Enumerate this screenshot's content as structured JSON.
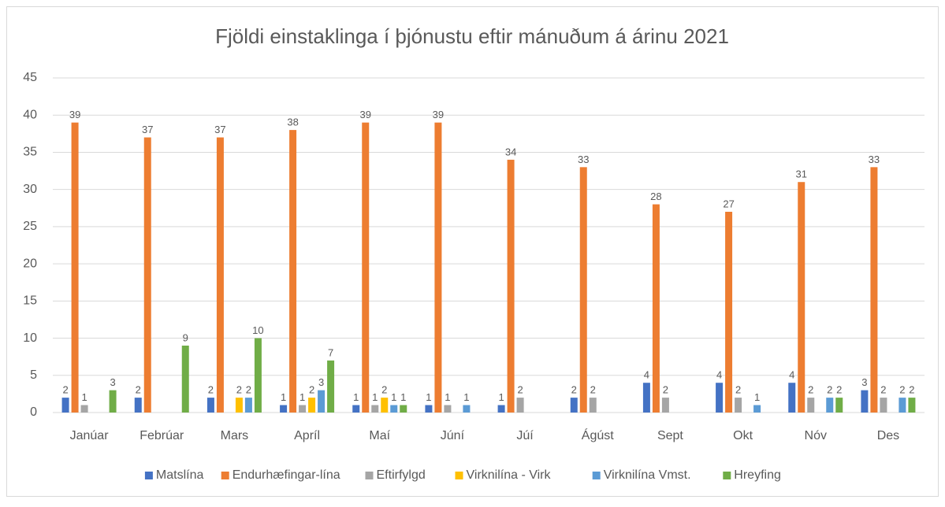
{
  "chart_data": {
    "type": "bar",
    "title": "Fjöldi einstaklinga í þjónustu eftir mánuðum á árinu 2021",
    "categories": [
      "Janúar",
      "Febrúar",
      "Mars",
      "Apríl",
      "Maí",
      "Júní",
      "Júí",
      "Ágúst",
      "Sept",
      "Okt",
      "Nóv",
      "Des"
    ],
    "series": [
      {
        "name": "Matslína",
        "color": "#4472c4",
        "values": [
          2,
          2,
          2,
          1,
          1,
          1,
          1,
          2,
          4,
          4,
          4,
          3
        ]
      },
      {
        "name": "Endurhæfingar-lína",
        "color": "#ed7d31",
        "values": [
          39,
          37,
          37,
          38,
          39,
          39,
          34,
          33,
          28,
          27,
          31,
          33
        ]
      },
      {
        "name": "Eftirfylgd",
        "color": "#a5a5a5",
        "values": [
          1,
          null,
          null,
          1,
          1,
          1,
          2,
          2,
          2,
          2,
          2,
          2
        ]
      },
      {
        "name": "Virknilína - Virk",
        "color": "#ffc000",
        "values": [
          null,
          null,
          2,
          2,
          2,
          null,
          null,
          null,
          null,
          null,
          null,
          null
        ]
      },
      {
        "name": "Virknilína Vmst.",
        "color": "#5b9bd5",
        "values": [
          null,
          null,
          2,
          3,
          1,
          1,
          null,
          null,
          null,
          1,
          2,
          2
        ]
      },
      {
        "name": "Hreyfing",
        "color": "#70ad47",
        "values": [
          3,
          9,
          10,
          7,
          1,
          null,
          null,
          null,
          null,
          null,
          2,
          2
        ]
      }
    ],
    "ylim": [
      0,
      45
    ],
    "yticks": [
      0,
      5,
      10,
      15,
      20,
      25,
      30,
      35,
      40,
      45
    ],
    "grid": true,
    "legend": "bottom"
  }
}
